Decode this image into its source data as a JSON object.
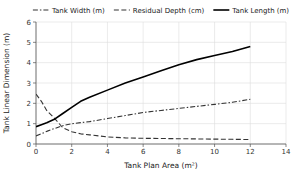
{
  "chart_data": {
    "type": "line",
    "xlabel": "Tank Plan Area (m²)",
    "ylabel": "Tank Linear Dimension (m)",
    "x": [
      0,
      0.3,
      0.6,
      1.0,
      1.5,
      2.0,
      2.5,
      3.0,
      4.0,
      5.0,
      6.0,
      7.0,
      8.0,
      9.0,
      10.0,
      11.0,
      12.0
    ],
    "series": [
      {
        "name": "Tank Width (m)",
        "color": "#333333",
        "line_style": "dashdot",
        "values": [
          0.4,
          0.5,
          0.62,
          0.75,
          0.9,
          1.0,
          1.05,
          1.1,
          1.25,
          1.4,
          1.55,
          1.65,
          1.75,
          1.85,
          1.95,
          2.05,
          2.2
        ]
      },
      {
        "name": "Residual Depth (cm)",
        "color": "#333333",
        "line_style": "dashed",
        "values": [
          2.45,
          2.1,
          1.65,
          1.3,
          0.8,
          0.6,
          0.5,
          0.45,
          0.35,
          0.3,
          0.28,
          0.27,
          0.26,
          0.25,
          0.24,
          0.23,
          0.22
        ]
      },
      {
        "name": "Tank Length (m)",
        "color": "#000000",
        "line_style": "solid",
        "values": [
          0.85,
          0.95,
          1.05,
          1.2,
          1.5,
          1.8,
          2.1,
          2.3,
          2.65,
          3.0,
          3.3,
          3.6,
          3.9,
          4.15,
          4.35,
          4.55,
          4.8
        ]
      }
    ],
    "xlim": [
      0,
      14
    ],
    "ylim": [
      0,
      6
    ],
    "xticks": [
      0,
      2,
      4,
      6,
      8,
      10,
      12,
      14
    ],
    "yticks": [
      0,
      1,
      2,
      3,
      4,
      5,
      6
    ],
    "grid": true,
    "legend": "top"
  }
}
